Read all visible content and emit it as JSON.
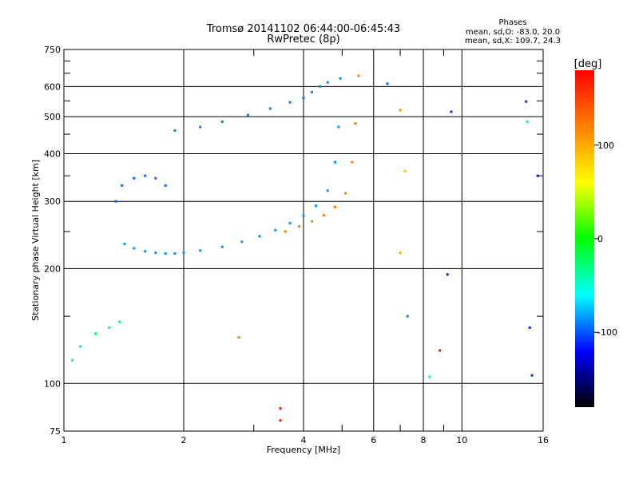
{
  "chart_data": {
    "type": "scatter",
    "title": "Tromsø 20141102 06:44:00-06:45:43",
    "subtitle": "RwPretec (8p)",
    "xlabel": "Frequency [MHz]",
    "ylabel": "Stationary phase Virtual Height [km]",
    "x_scale": "log",
    "y_scale": "log",
    "xlim": [
      1,
      16
    ],
    "ylim": [
      75,
      750
    ],
    "x_ticks": [
      1,
      2,
      4,
      6,
      8,
      10,
      16
    ],
    "x_tick_labels": [
      "1",
      "2",
      "4",
      "6",
      "8",
      "10",
      "16"
    ],
    "x_minor_ticks": [
      3,
      5,
      7,
      9
    ],
    "y_ticks": [
      75,
      100,
      200,
      300,
      400,
      500,
      600,
      750
    ],
    "y_tick_labels": [
      "75",
      "100",
      "200",
      "300",
      "400",
      "500",
      "600",
      "750"
    ],
    "y_minor_ticks": [
      150,
      250,
      350,
      450,
      550,
      650,
      700
    ],
    "grid": true,
    "phase_info": {
      "title": "Phases",
      "line1": "mean, sd,O: -83.0, 20.0",
      "line2": "mean, sd,X: 109.7, 24.3"
    },
    "colorbar": {
      "label": "[deg]",
      "range": [
        -180,
        180
      ],
      "ticks": [
        100,
        0,
        -100
      ],
      "tick_labels": [
        "100",
        "0",
        "-100"
      ],
      "colors": [
        "#ff0000",
        "#ff8000",
        "#ffff00",
        "#00ff00",
        "#00ffff",
        "#0000ff",
        "#000000"
      ]
    },
    "traces": [
      {
        "name": "",
        "phase": -85,
        "x": [
          1.42,
          1.5,
          1.6,
          1.7,
          1.8,
          1.9,
          2.0,
          2.2,
          2.5,
          2.8,
          3.1,
          3.4,
          3.7,
          4.0,
          4.3,
          4.6,
          4.8,
          4.9,
          4.95
        ],
        "y": [
          232,
          226,
          222,
          220,
          219,
          219,
          220,
          223,
          228,
          235,
          243,
          252,
          263,
          275,
          292,
          320,
          380,
          470,
          630
        ]
      },
      {
        "name": "",
        "phase": -95,
        "x": [
          1.35,
          1.4,
          1.5,
          1.6,
          1.7,
          1.8
        ],
        "y": [
          300,
          330,
          345,
          350,
          345,
          330
        ]
      },
      {
        "name": "",
        "phase": -90,
        "x": [
          1.9,
          2.2,
          2.5,
          2.9,
          3.3,
          3.7
        ],
        "y": [
          460,
          470,
          485,
          505,
          525,
          545
        ]
      },
      {
        "name": "",
        "phase": -90,
        "x": [
          4.0,
          4.2,
          4.4,
          4.6
        ],
        "y": [
          560,
          580,
          600,
          615
        ]
      },
      {
        "name": "",
        "phase": 120,
        "x": [
          3.6,
          3.9,
          4.2,
          4.5,
          4.8,
          5.1,
          5.3,
          5.4,
          5.5
        ],
        "y": [
          250,
          258,
          266,
          276,
          290,
          315,
          380,
          480,
          640
        ]
      },
      {
        "name": "",
        "phase": -30,
        "x": [
          1.05,
          1.1,
          1.2,
          1.3,
          1.38
        ],
        "y": [
          115,
          125,
          135,
          140,
          145
        ]
      }
    ],
    "isolated_points": [
      {
        "x": 3.5,
        "y": 86,
        "phase": 175
      },
      {
        "x": 3.5,
        "y": 80,
        "phase": 175
      },
      {
        "x": 2.75,
        "y": 132,
        "phase": 120
      },
      {
        "x": 6.5,
        "y": 610,
        "phase": -95
      },
      {
        "x": 7.0,
        "y": 520,
        "phase": 110
      },
      {
        "x": 7.2,
        "y": 360,
        "phase": 90
      },
      {
        "x": 7.0,
        "y": 220,
        "phase": 100
      },
      {
        "x": 7.3,
        "y": 150,
        "phase": -90
      },
      {
        "x": 9.2,
        "y": 193,
        "phase": -110
      },
      {
        "x": 9.4,
        "y": 515,
        "phase": -110
      },
      {
        "x": 8.8,
        "y": 122,
        "phase": 175
      },
      {
        "x": 8.3,
        "y": 104,
        "phase": -40
      },
      {
        "x": 14.5,
        "y": 548,
        "phase": -110
      },
      {
        "x": 14.8,
        "y": 140,
        "phase": -110
      },
      {
        "x": 15.0,
        "y": 105,
        "phase": -110
      },
      {
        "x": 15.5,
        "y": 350,
        "phase": -110
      },
      {
        "x": 14.6,
        "y": 485,
        "phase": -30
      }
    ]
  }
}
